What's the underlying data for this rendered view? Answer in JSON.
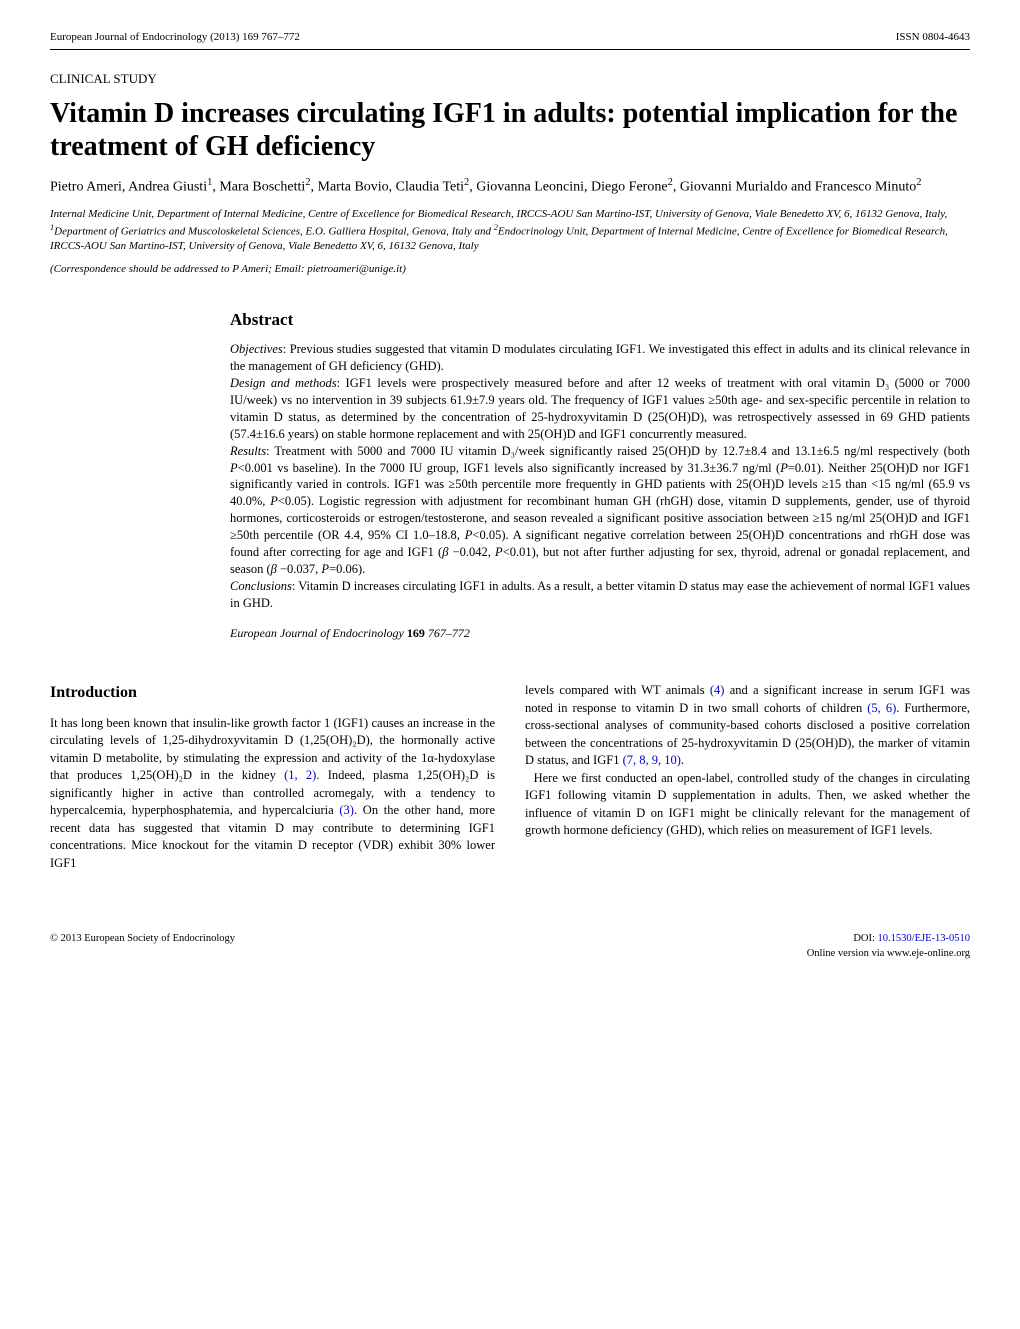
{
  "header": {
    "journal": "European Journal of Endocrinology (2013) 169 767–772",
    "issn": "ISSN 0804-4643"
  },
  "studyType": "CLINICAL STUDY",
  "title": "Vitamin D increases circulating IGF1 in adults: potential implication for the treatment of GH deficiency",
  "authorsHtml": "Pietro Ameri, Andrea Giusti<sup>1</sup>, Mara Boschetti<sup>2</sup>, Marta Bovio, Claudia Teti<sup>2</sup>, Giovanna Leoncini, Diego Ferone<sup>2</sup>, Giovanni Murialdo and Francesco Minuto<sup>2</sup>",
  "affiliationsHtml": "Internal Medicine Unit, Department of Internal Medicine, Centre of Excellence for Biomedical Research, IRCCS-AOU San Martino-IST, University of Genova, Viale Benedetto XV, 6, 16132 Genova, Italy, <sup>1</sup>Department of Geriatrics and Muscoloskeletal Sciences, E.O. Galliera Hospital, Genova, Italy and <sup>2</sup>Endocrinology Unit, Department of Internal Medicine, Centre of Excellence for Biomedical Research, IRCCS-AOU San Martino-IST, University of Genova, Viale Benedetto XV, 6, 16132 Genova, Italy",
  "correspondence": "(Correspondence should be addressed to P Ameri; Email: pietroameri@unige.it)",
  "abstract": {
    "heading": "Abstract",
    "objectivesLabel": "Objectives",
    "objectivesText": ": Previous studies suggested that vitamin D modulates circulating IGF1. We investigated this effect in adults and its clinical relevance in the management of GH deficiency (GHD).",
    "designLabel": "Design and methods",
    "designText": ": IGF1 levels were prospectively measured before and after 12 weeks of treatment with oral vitamin D₃ (5000 or 7000 IU/week) vs no intervention in 39 subjects 61.9±7.9 years old. The frequency of IGF1 values ≥50th age- and sex-specific percentile in relation to vitamin D status, as determined by the concentration of 25-hydroxyvitamin D (25(OH)D), was retrospectively assessed in 69 GHD patients (57.4±16.6 years) on stable hormone replacement and with 25(OH)D and IGF1 concurrently measured.",
    "resultsLabel": "Results",
    "resultsTextHtml": ": Treatment with 5000 and 7000 IU vitamin D₃/week significantly raised 25(OH)D by 12.7±8.4 and 13.1±6.5 ng/ml respectively (both <em>P</em>&lt;0.001 vs baseline). In the 7000 IU group, IGF1 levels also significantly increased by 31.3±36.7 ng/ml (<em>P</em>=0.01). Neither 25(OH)D nor IGF1 significantly varied in controls. IGF1 was ≥50th percentile more frequently in GHD patients with 25(OH)D levels ≥15 than &lt;15 ng/ml (65.9 vs 40.0%, <em>P</em>&lt;0.05). Logistic regression with adjustment for recombinant human GH (rhGH) dose, vitamin D supplements, gender, use of thyroid hormones, corticosteroids or estrogen/testosterone, and season revealed a significant positive association between ≥15 ng/ml 25(OH)D and IGF1 ≥50th percentile (OR 4.4, 95% CI 1.0–18.8, <em>P</em>&lt;0.05). A significant negative correlation between 25(OH)D concentrations and rhGH dose was found after correcting for age and IGF1 (<em>β</em> −0.042, <em>P</em>&lt;0.01), but not after further adjusting for sex, thyroid, adrenal or gonadal replacement, and season (<em>β</em> −0.037, <em>P</em>=0.06).",
    "conclusionsLabel": "Conclusions",
    "conclusionsText": ": Vitamin D increases circulating IGF1 in adults. As a result, a better vitamin D status may ease the achievement of normal IGF1 values in GHD.",
    "citationJournal": "European Journal of Endocrinology",
    "citationVolume": "169",
    "citationPages": "767–772"
  },
  "introduction": {
    "heading": "Introduction",
    "leftHtml": "It has long been known that insulin-like growth factor 1 (IGF1) causes an increase in the circulating levels of 1,25-dihydroxyvitamin D (1,25(OH)₂D), the hormonally active vitamin D metabolite, by stimulating the expression and activity of the 1α-hydoxylase that produces 1,25(OH)₂D in the kidney <span class=\"ref-link\">(1, 2)</span>. Indeed, plasma 1,25(OH)₂D is significantly higher in active than controlled acromegaly, with a tendency to hypercalcemia, hyperphosphatemia, and hypercalciuria <span class=\"ref-link\">(3)</span>. On the other hand, more recent data has suggested that vitamin D may contribute to determining IGF1 concentrations. Mice knockout for the vitamin D receptor (VDR) exhibit 30% lower IGF1",
    "rightHtml": "levels compared with WT animals <span class=\"ref-link\">(4)</span> and a significant increase in serum IGF1 was noted in response to vitamin D in two small cohorts of children <span class=\"ref-link\">(5, 6)</span>. Furthermore, cross-sectional analyses of community-based cohorts disclosed a positive correlation between the concentrations of 25-hydroxyvitamin D (25(OH)D), the marker of vitamin D status, and IGF1 <span class=\"ref-link\">(7, 8, 9, 10)</span>.<br>&nbsp;&nbsp;Here we first conducted an open-label, controlled study of the changes in circulating IGF1 following vitamin D supplementation in adults. Then, we asked whether the influence of vitamin D on IGF1 might be clinically relevant for the management of growth hormone deficiency (GHD), which relies on measurement of IGF1 levels."
  },
  "footer": {
    "copyright": "© 2013 European Society of Endocrinology",
    "doiLabel": "DOI: ",
    "doi": "10.1530/EJE-13-0510",
    "online": "Online version via www.eje-online.org"
  }
}
